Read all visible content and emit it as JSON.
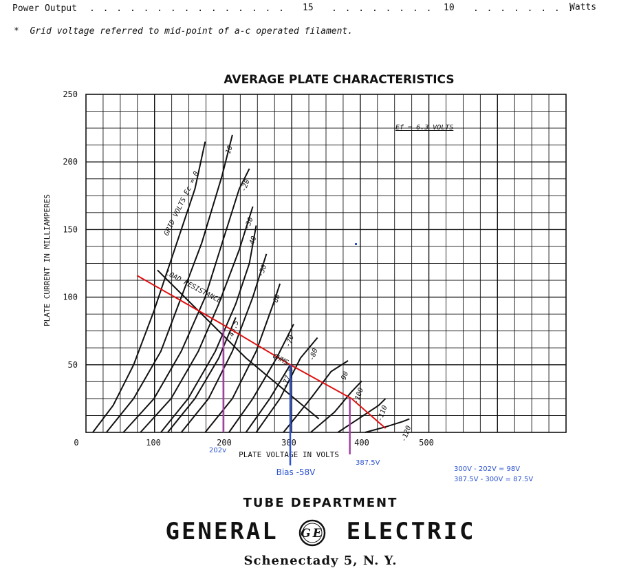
{
  "header": {
    "power_output_label": "Power Output",
    "power_output_val1": "15",
    "power_output_val2": "10",
    "power_output_unit": "Watts",
    "footnote": "*  Grid voltage referred to mid-point of a-c operated filament."
  },
  "chart_data": {
    "type": "line",
    "title": "AVERAGE PLATE CHARACTERISTICS",
    "xlabel": "PLATE VOLTAGE IN VOLTS",
    "ylabel": "PLATE CURRENT IN MILLIAMPERES",
    "xlim": [
      0,
      500
    ],
    "ylim": [
      0,
      250
    ],
    "x_ticks": [
      "0",
      "100",
      "200",
      "300",
      "400",
      "500"
    ],
    "y_ticks": [
      "250",
      "200",
      "150",
      "100",
      "50"
    ],
    "grid": true,
    "filament_note": "Ef = 6.3 VOLTS",
    "grid_volts_label": "GRID VOLTS Ec = 0",
    "load_label": "LOAD RESISTANCE",
    "load_value_label": "OHMS",
    "series": [
      {
        "name": "0",
        "points": [
          [
            10,
            0
          ],
          [
            40,
            20
          ],
          [
            70,
            50
          ],
          [
            100,
            90
          ],
          [
            130,
            135
          ],
          [
            160,
            180
          ],
          [
            175,
            215
          ]
        ]
      },
      {
        "name": "-10",
        "points": [
          [
            30,
            0
          ],
          [
            70,
            25
          ],
          [
            110,
            60
          ],
          [
            140,
            100
          ],
          [
            170,
            140
          ],
          [
            200,
            190
          ],
          [
            215,
            220
          ]
        ]
      },
      {
        "name": "-20",
        "points": [
          [
            55,
            0
          ],
          [
            100,
            25
          ],
          [
            140,
            60
          ],
          [
            175,
            100
          ],
          [
            200,
            140
          ],
          [
            225,
            180
          ],
          [
            240,
            195
          ]
        ]
      },
      {
        "name": "-30",
        "points": [
          [
            80,
            0
          ],
          [
            125,
            25
          ],
          [
            165,
            60
          ],
          [
            195,
            95
          ],
          [
            225,
            135
          ],
          [
            245,
            167
          ]
        ]
      },
      {
        "name": "-40",
        "points": [
          [
            110,
            0
          ],
          [
            150,
            25
          ],
          [
            190,
            60
          ],
          [
            220,
            95
          ],
          [
            240,
            125
          ],
          [
            250,
            153
          ]
        ]
      },
      {
        "name": "-43.5",
        "points": [
          [
            120,
            0
          ],
          [
            160,
            25
          ],
          [
            195,
            55
          ],
          [
            220,
            85
          ]
        ]
      },
      {
        "name": "-50",
        "points": [
          [
            140,
            0
          ],
          [
            180,
            25
          ],
          [
            215,
            60
          ],
          [
            245,
            100
          ],
          [
            265,
            132
          ]
        ]
      },
      {
        "name": "-60",
        "points": [
          [
            175,
            0
          ],
          [
            215,
            25
          ],
          [
            250,
            60
          ],
          [
            275,
            95
          ],
          [
            285,
            110
          ]
        ]
      },
      {
        "name": "-70",
        "points": [
          [
            210,
            0
          ],
          [
            245,
            25
          ],
          [
            280,
            55
          ],
          [
            305,
            80
          ]
        ]
      },
      {
        "name": "-77.5",
        "points": [
          [
            235,
            0
          ],
          [
            270,
            25
          ],
          [
            300,
            50
          ]
        ]
      },
      {
        "name": "-80",
        "points": [
          [
            250,
            0
          ],
          [
            285,
            25
          ],
          [
            315,
            55
          ],
          [
            340,
            70
          ]
        ]
      },
      {
        "name": "-90",
        "points": [
          [
            290,
            0
          ],
          [
            330,
            25
          ],
          [
            360,
            45
          ],
          [
            385,
            53
          ]
        ]
      },
      {
        "name": "-100",
        "points": [
          [
            330,
            0
          ],
          [
            365,
            15
          ],
          [
            390,
            30
          ],
          [
            405,
            38
          ]
        ]
      },
      {
        "name": "-110",
        "points": [
          [
            370,
            0
          ],
          [
            400,
            10
          ],
          [
            430,
            20
          ],
          [
            440,
            25
          ]
        ]
      },
      {
        "name": "-120",
        "points": [
          [
            410,
            0
          ],
          [
            440,
            4
          ],
          [
            465,
            8
          ],
          [
            475,
            10
          ]
        ]
      }
    ],
    "series_labels_on_chart": [
      "-10",
      "-20",
      "-30",
      "-40",
      "-43.5",
      "-50",
      "-60",
      "-70",
      "-77.5",
      "-80",
      "-90",
      "-100",
      "-110",
      "-120"
    ],
    "load_line_black": [
      [
        105,
        120
      ],
      [
        235,
        55
      ],
      [
        342,
        10
      ]
    ],
    "load_line_red": [
      [
        75,
        116
      ],
      [
        200,
        80
      ],
      [
        300,
        50
      ],
      [
        390,
        25
      ],
      [
        440,
        3
      ]
    ],
    "marker_lines": [
      {
        "x": 202,
        "y_top": 77,
        "color": "#a040a0"
      },
      {
        "x": 300,
        "y_top": 50,
        "color": "#2a52d0"
      },
      {
        "x": 387.5,
        "y_top": 25,
        "color": "#a040a0"
      }
    ],
    "annotations": {
      "v202": "202v",
      "bias": "Bias -58V",
      "v387": "387.5V",
      "calc1": "300V - 202V = 98V",
      "calc2": "387.5V - 300V = 87.5V"
    }
  },
  "footer": {
    "department": "TUBE DEPARTMENT",
    "company_left": "GENERAL",
    "company_right": "ELECTRIC",
    "location": "Schenectady 5, N. Y.",
    "logo_text": "GE"
  }
}
